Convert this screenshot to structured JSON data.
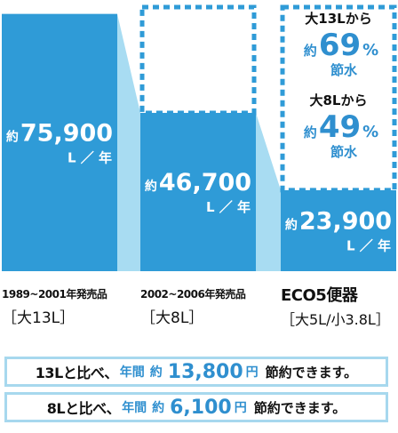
{
  "chart_data": {
    "type": "bar",
    "unit_prefix": "約",
    "unit_suffix": "L ／ 年",
    "categories": [
      {
        "period": "1989~2001年発売品",
        "size": "［大13L］"
      },
      {
        "period": "2002~2006年発売品",
        "size": "［大8L］"
      },
      {
        "period": "ECO5便器",
        "size": "［大5L/小3.8L］"
      }
    ],
    "values": [
      75900,
      46700,
      23900
    ],
    "value_labels": [
      "75,900",
      "46,700",
      "23,900"
    ],
    "ylim": [
      0,
      80000
    ],
    "colors": {
      "bar": "#2f9bd7",
      "connector": "#a8dcf2",
      "dashed": "#2f9bd7",
      "accent": "#2f8fcf"
    },
    "savings_annotations": [
      {
        "from": "大13Lから",
        "prefix": "約",
        "percent": "69",
        "unit": "%",
        "suffix": "節水"
      },
      {
        "from": "大8Lから",
        "prefix": "約",
        "percent": "49",
        "unit": "%",
        "suffix": "節水"
      }
    ]
  },
  "summary": [
    {
      "compare": "13Lと比べ、",
      "period": "年間",
      "prefix": "約",
      "amount": "13,800",
      "currency": "円",
      "tail": "節約できます。"
    },
    {
      "compare": "8Lと比べ、",
      "period": "年間",
      "prefix": "約",
      "amount": "6,100",
      "currency": "円",
      "tail": "節約できます。"
    }
  ]
}
